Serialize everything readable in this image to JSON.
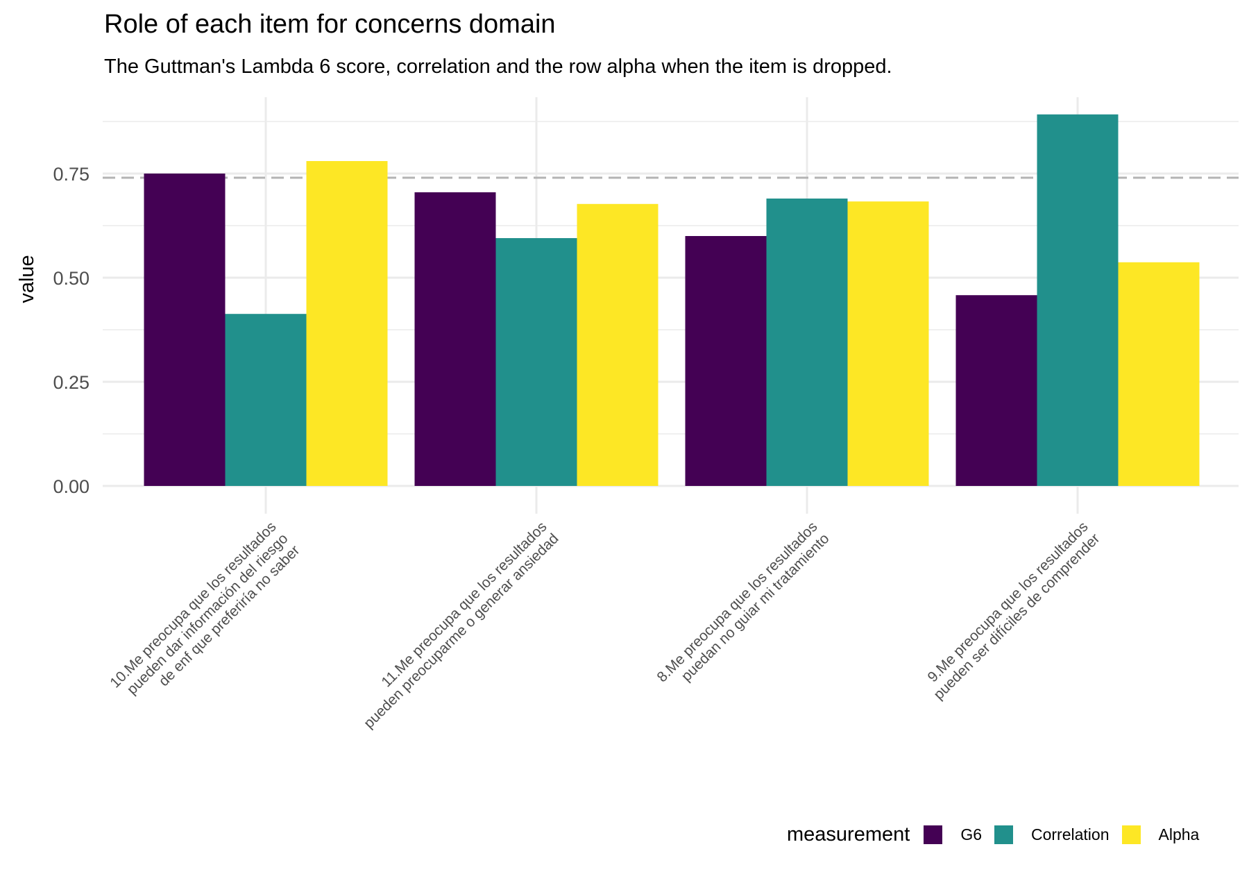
{
  "chart_data": {
    "type": "bar",
    "title": "Role of each item for concerns domain",
    "subtitle": "The Guttman's Lambda 6 score, correlation and the row alpha when the item is dropped.",
    "xlabel": "",
    "ylabel": "value",
    "ylim": [
      0,
      0.94
    ],
    "yticks": [
      0.0,
      0.25,
      0.5,
      0.75
    ],
    "ytick_labels": [
      "0.00",
      "0.25",
      "0.50",
      "0.75"
    ],
    "reference_line": 0.74,
    "categories": [
      [
        "10.Me preocupa que los resultados",
        "pueden dar información del riesgo",
        "de enf que preferiría no saber"
      ],
      [
        "11.Me preocupa que los resultados",
        "pueden preocuparme o generar ansiedad"
      ],
      [
        "8.Me preocupa que los resultados",
        "puedan no guiar mi tratamiento"
      ],
      [
        "9.Me preocupa que los resultados",
        "pueden ser difíciles de comprender"
      ]
    ],
    "series": [
      {
        "name": "G6",
        "color": "#440154",
        "values": [
          0.75,
          0.705,
          0.6,
          0.458
        ]
      },
      {
        "name": "Correlation",
        "color": "#21908C",
        "values": [
          0.413,
          0.595,
          0.69,
          0.892
        ]
      },
      {
        "name": "Alpha",
        "color": "#FDE725",
        "values": [
          0.78,
          0.677,
          0.683,
          0.537
        ]
      }
    ],
    "legend": {
      "title": "measurement",
      "position": "bottom-right"
    }
  }
}
